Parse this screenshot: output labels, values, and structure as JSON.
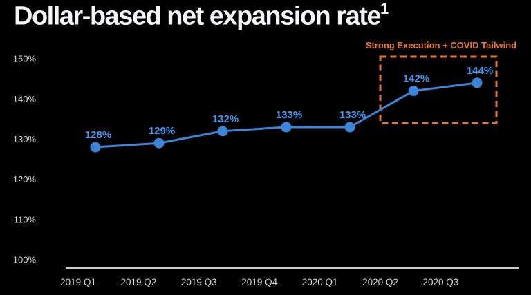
{
  "page": {
    "background_color": "#000000"
  },
  "header": {
    "title": "Dollar-based net expansion rate",
    "footnote_marker": "1"
  },
  "chart_data": {
    "type": "line",
    "title": "Dollar-based net expansion rate",
    "categories": [
      "2019 Q1",
      "2019 Q2",
      "2019 Q3",
      "2019 Q4",
      "2020 Q1",
      "2020 Q2",
      "2020 Q3"
    ],
    "values": [
      128,
      129,
      132,
      133,
      133,
      142,
      144
    ],
    "point_labels": [
      "128%",
      "129%",
      "132%",
      "133%",
      "133%",
      "142%",
      "144%"
    ],
    "y_tick_labels": [
      "100%",
      "110%",
      "120%",
      "130%",
      "140%",
      "150%"
    ],
    "y_tick_values": [
      100,
      110,
      120,
      130,
      140,
      150
    ],
    "ylim": [
      100,
      150
    ],
    "xlabel": "",
    "ylabel": "",
    "grid": false,
    "legend": false,
    "annotation": {
      "label": "Strong Execution + COVID Tailwind",
      "style": "dashed-box",
      "highlighted_categories": [
        "2020 Q2",
        "2020 Q3"
      ],
      "highlighted_values": [
        142,
        144
      ]
    },
    "colors": {
      "line": "#3c86da",
      "point": "#3c86da",
      "point_label": "#3d9bf3",
      "annotation": "#e8772b",
      "axis_line": "#c9c9c9",
      "tick_label": "#d6d6d8",
      "title": "#f5f5f7"
    }
  }
}
